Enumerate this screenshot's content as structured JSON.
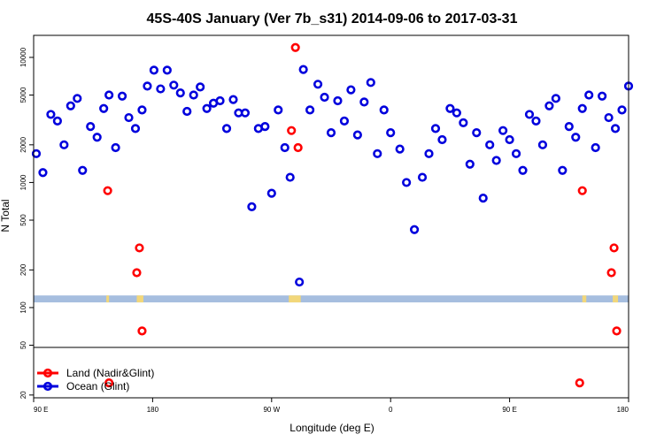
{
  "chart_data": {
    "type": "scatter",
    "title": "45S-40S January (Ver 7b_s31)   2014-09-06 to 2017-03-31",
    "xlabel": "Longitude (deg E)",
    "ylabel": "N Total",
    "x_ticks": [
      {
        "value": 90,
        "label": "90 E"
      },
      {
        "value": 180,
        "label": "180"
      },
      {
        "value": 270,
        "label": "90 W"
      },
      {
        "value": 360,
        "label": "0"
      },
      {
        "value": 450,
        "label": "90 E"
      },
      {
        "value": 540,
        "label": "180"
      }
    ],
    "xlim": [
      90,
      540
    ],
    "y_scale": "log",
    "ylim": [
      19,
      15000
    ],
    "y_ticks": [
      20,
      50,
      100,
      200,
      500,
      1000,
      2000,
      5000,
      10000
    ],
    "land_band": {
      "y_range": [
        110,
        125
      ],
      "color": "#a6bedf",
      "land_color": "#f2d77a",
      "land_x": [
        [
          145,
          147
        ],
        [
          168,
          173
        ],
        [
          283,
          292
        ],
        [
          505,
          508
        ],
        [
          528,
          532
        ]
      ]
    },
    "colors": {
      "land": "#ff0000",
      "ocean": "#0000dd"
    },
    "series": [
      {
        "name": "Land (Nadir&Glint)",
        "key": "land",
        "points": [
          [
            146,
            860
          ],
          [
            168,
            190
          ],
          [
            170,
            300
          ],
          [
            172,
            65
          ],
          [
            285,
            2600
          ],
          [
            288,
            12000
          ],
          [
            290,
            1900
          ],
          [
            147,
            25
          ],
          [
            505,
            860
          ],
          [
            527,
            190
          ],
          [
            529,
            300
          ],
          [
            531,
            65
          ],
          [
            503,
            25
          ]
        ]
      },
      {
        "name": "Ocean (Glint)",
        "key": "ocean",
        "points": [
          [
            92,
            1700
          ],
          [
            97,
            1200
          ],
          [
            103,
            3500
          ],
          [
            108,
            3100
          ],
          [
            113,
            2000
          ],
          [
            118,
            4100
          ],
          [
            123,
            4700
          ],
          [
            127,
            1250
          ],
          [
            133,
            2800
          ],
          [
            138,
            2300
          ],
          [
            143,
            3900
          ],
          [
            147,
            5000
          ],
          [
            152,
            1900
          ],
          [
            157,
            4900
          ],
          [
            162,
            3300
          ],
          [
            167,
            2700
          ],
          [
            172,
            3800
          ],
          [
            176,
            5900
          ],
          [
            181,
            7900
          ],
          [
            186,
            5600
          ],
          [
            191,
            7900
          ],
          [
            196,
            6000
          ],
          [
            201,
            5200
          ],
          [
            206,
            3700
          ],
          [
            211,
            5000
          ],
          [
            216,
            5800
          ],
          [
            221,
            3900
          ],
          [
            226,
            4300
          ],
          [
            231,
            4500
          ],
          [
            236,
            2700
          ],
          [
            241,
            4600
          ],
          [
            245,
            3600
          ],
          [
            250,
            3600
          ],
          [
            255,
            640
          ],
          [
            260,
            2700
          ],
          [
            265,
            2800
          ],
          [
            270,
            820
          ],
          [
            275,
            3800
          ],
          [
            280,
            1900
          ],
          [
            284,
            1100
          ],
          [
            291,
            160
          ],
          [
            294,
            8000
          ],
          [
            299,
            3800
          ],
          [
            305,
            6100
          ],
          [
            310,
            4800
          ],
          [
            315,
            2500
          ],
          [
            320,
            4500
          ],
          [
            325,
            3100
          ],
          [
            330,
            5500
          ],
          [
            335,
            2400
          ],
          [
            340,
            4400
          ],
          [
            345,
            6300
          ],
          [
            350,
            1700
          ],
          [
            355,
            3800
          ],
          [
            360,
            2500
          ],
          [
            367,
            1850
          ],
          [
            372,
            1000
          ],
          [
            378,
            420
          ],
          [
            384,
            1100
          ],
          [
            389,
            1700
          ],
          [
            394,
            2700
          ],
          [
            399,
            2200
          ],
          [
            405,
            3900
          ],
          [
            410,
            3600
          ],
          [
            415,
            3000
          ],
          [
            420,
            1400
          ],
          [
            425,
            2500
          ],
          [
            430,
            750
          ],
          [
            435,
            2000
          ],
          [
            440,
            1500
          ],
          [
            445,
            2600
          ],
          [
            450,
            2200
          ],
          [
            455,
            1700
          ],
          [
            460,
            1250
          ],
          [
            465,
            3500
          ],
          [
            470,
            3100
          ],
          [
            475,
            2000
          ],
          [
            480,
            4100
          ],
          [
            485,
            4700
          ],
          [
            490,
            1250
          ],
          [
            495,
            2800
          ],
          [
            500,
            2300
          ],
          [
            505,
            3900
          ],
          [
            510,
            5000
          ],
          [
            515,
            1900
          ],
          [
            520,
            4900
          ],
          [
            525,
            3300
          ],
          [
            530,
            2700
          ],
          [
            535,
            3800
          ],
          [
            540,
            5900
          ]
        ]
      }
    ]
  }
}
